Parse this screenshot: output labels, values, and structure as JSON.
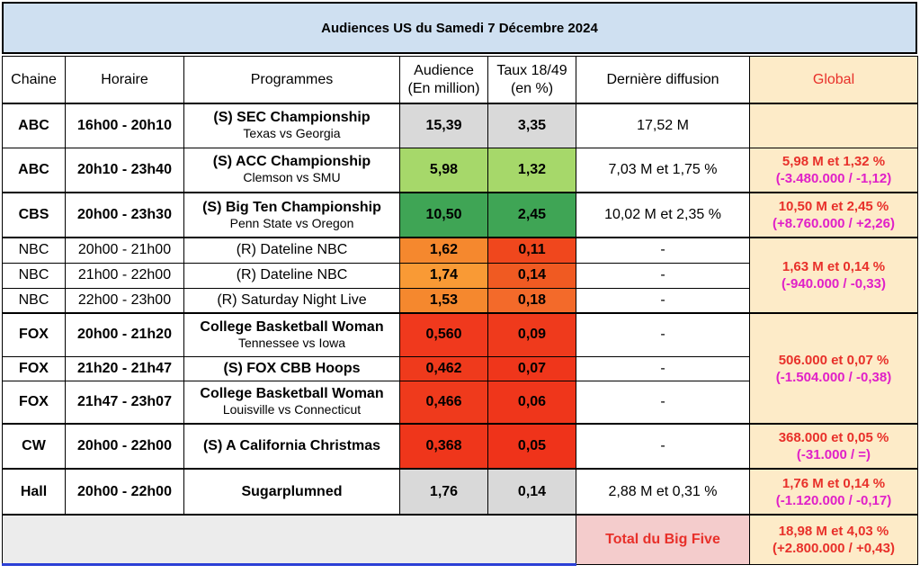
{
  "title": "Audiences US du Samedi 7 Décembre 2024",
  "headers": {
    "chaine": "Chaine",
    "horaire": "Horaire",
    "programmes": "Programmes",
    "audience_l1": "Audience",
    "audience_l2": "(En million)",
    "taux_l1": "Taux 18/49",
    "taux_l2": "(en %)",
    "derniere": "Dernière diffusion",
    "global": "Global"
  },
  "rows": [
    {
      "chaine": "ABC",
      "horaire": "16h00 - 20h10",
      "prog": "(S) SEC Championship",
      "sub": "Texas vs Georgia",
      "audience": "15,39",
      "taux": "3,35",
      "derniere": "17,52 M",
      "aud_color": "#d9d9d9",
      "taux_color": "#d9d9d9"
    },
    {
      "chaine": "ABC",
      "horaire": "20h10 - 23h40",
      "prog": "(S) ACC Championship",
      "sub": "Clemson vs SMU",
      "audience": "5,98",
      "taux": "1,32",
      "derniere": "7,03 M et 1,75 %",
      "aud_color": "#a6d86a",
      "taux_color": "#a6d86a"
    },
    {
      "chaine": "CBS",
      "horaire": "20h00 - 23h30",
      "prog": "(S) Big Ten Championship",
      "sub": "Penn State vs Oregon",
      "audience": "10,50",
      "taux": "2,45",
      "derniere": "10,02 M et 2,35 %",
      "aud_color": "#3fa555",
      "taux_color": "#3fa555"
    },
    {
      "chaine": "NBC",
      "horaire": "20h00 - 21h00",
      "prog": "(R) Dateline NBC",
      "sub": "",
      "audience": "1,62",
      "taux": "0,11",
      "derniere": "-",
      "aud_color": "#f5882e",
      "taux_color": "#f0471d"
    },
    {
      "chaine": "NBC",
      "horaire": "21h00 - 22h00",
      "prog": "(R) Dateline NBC",
      "sub": "",
      "audience": "1,74",
      "taux": "0,14",
      "derniere": "-",
      "aud_color": "#f99a35",
      "taux_color": "#f05a22"
    },
    {
      "chaine": "NBC",
      "horaire": "22h00 - 23h00",
      "prog": "(R) Saturday Night Live",
      "sub": "",
      "audience": "1,53",
      "taux": "0,18",
      "derniere": "-",
      "aud_color": "#f5882e",
      "taux_color": "#f36a2a"
    },
    {
      "chaine": "FOX",
      "horaire": "20h00 - 21h20",
      "prog": "College Basketball Woman",
      "sub": "Tennessee vs Iowa",
      "audience": "0,560",
      "taux": "0,09",
      "derniere": "-",
      "aud_color": "#f0391d",
      "taux_color": "#ef3a1c"
    },
    {
      "chaine": "FOX",
      "horaire": "21h20 - 21h47",
      "prog": "(S) FOX CBB Hoops",
      "sub": "",
      "audience": "0,462",
      "taux": "0,07",
      "derniere": "-",
      "aud_color": "#ef3a1c",
      "taux_color": "#ef361b"
    },
    {
      "chaine": "FOX",
      "horaire": "21h47 - 23h07",
      "prog": "College Basketball Woman",
      "sub": "Louisville vs Connecticut",
      "audience": "0,466",
      "taux": "0,06",
      "derniere": "-",
      "aud_color": "#ef3a1c",
      "taux_color": "#ef361b"
    },
    {
      "chaine": "CW",
      "horaire": "20h00 - 22h00",
      "prog": "(S) A California Christmas",
      "sub": "",
      "audience": "0,368",
      "taux": "0,05",
      "derniere": "-",
      "aud_color": "#ef361b",
      "taux_color": "#ef331a"
    },
    {
      "chaine": "Hall",
      "horaire": "20h00 - 22h00",
      "prog": "Sugarplumned",
      "sub": "",
      "audience": "1,76",
      "taux": "0,14",
      "derniere": "2,88 M et 0,31 %",
      "aud_color": "#d9d9d9",
      "taux_color": "#d9d9d9"
    }
  ],
  "global": {
    "abc_l1": "5,98 M et 1,32 %",
    "abc_l2": "(-3.480.000 / -1,12)",
    "cbs_l1": "10,50 M et 2,45 %",
    "cbs_l2": "(+8.760.000 / +2,26)",
    "nbc_l1": "1,63 M et 0,14 %",
    "nbc_l2": "(-940.000 / -0,33)",
    "fox_l1": "506.000 et 0,07 %",
    "fox_l2": "(-1.504.000 / -0,38)",
    "cw_l1": "368.000 et 0,05 %",
    "cw_l2": "(-31.000 / =)",
    "hall_l1": "1,76 M et 0,14 %",
    "hall_l2": "(-1.120.000 / -0,17)"
  },
  "total": {
    "label": "Total du Big Five",
    "l1": "18,98 M et 4,03 %",
    "l2": "(+2.800.000 / +0,43)"
  }
}
